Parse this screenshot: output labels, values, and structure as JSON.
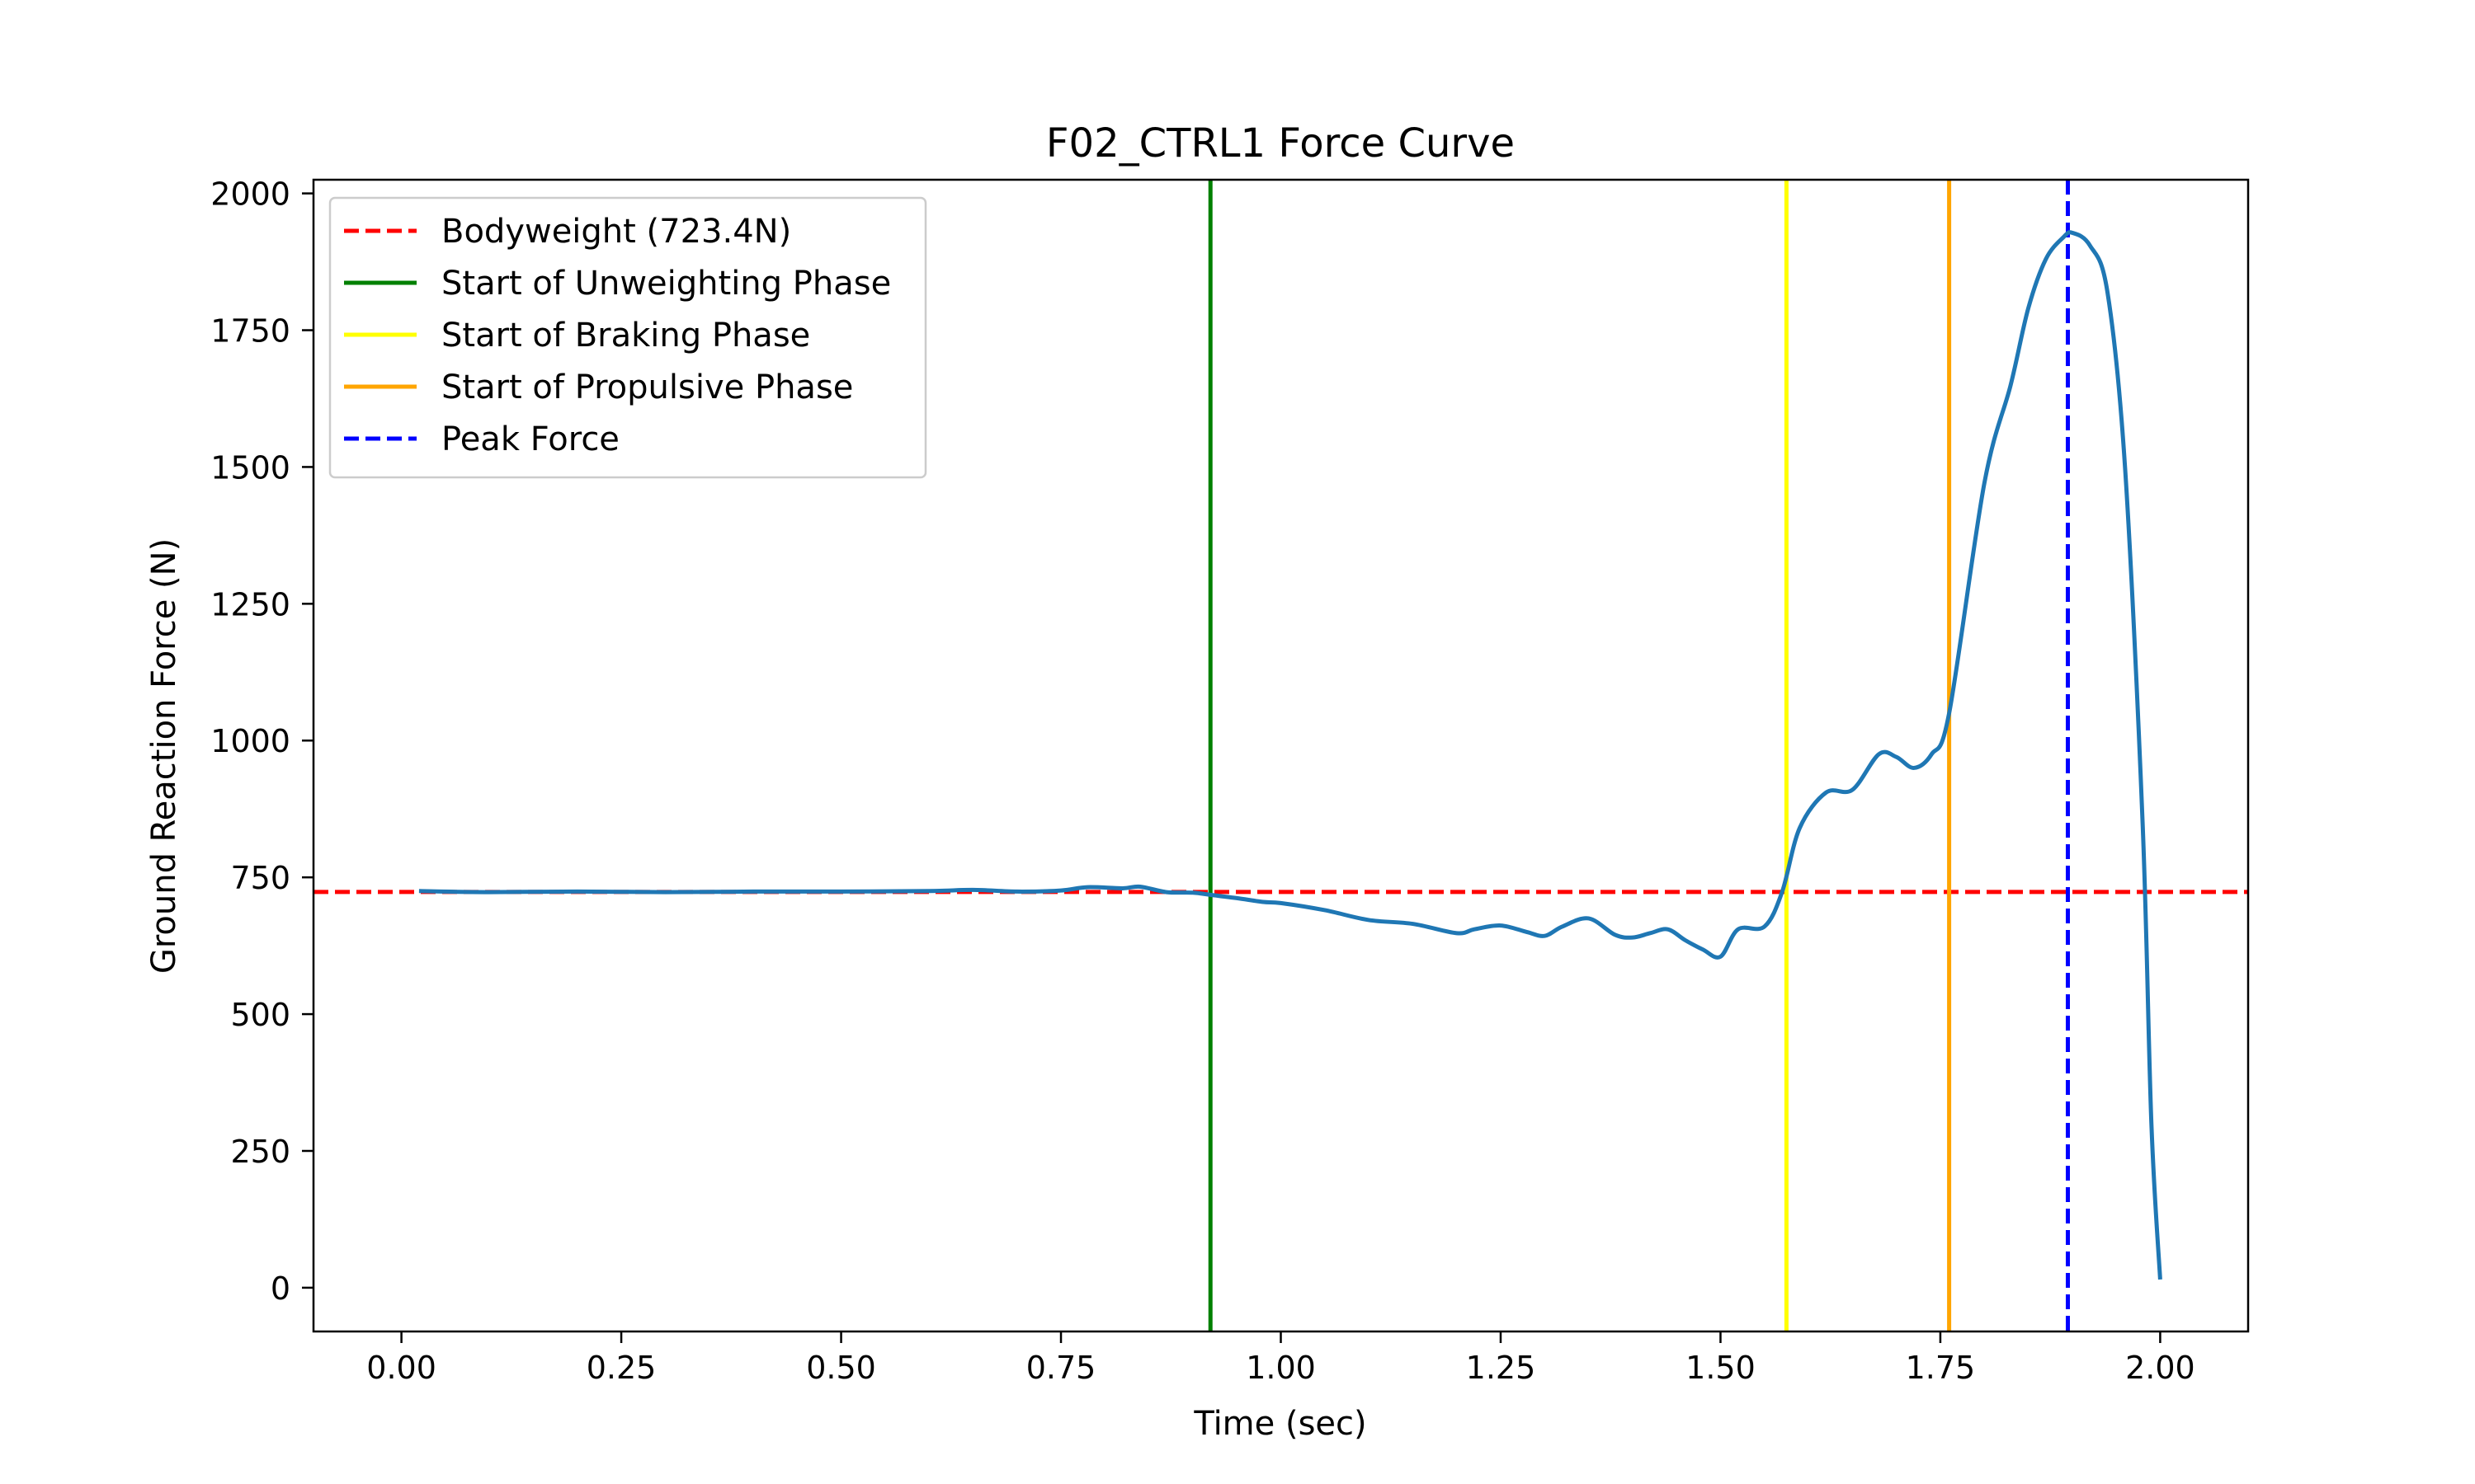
{
  "chart_data": {
    "type": "line",
    "title": "F02_CTRL1 Force Curve",
    "xlabel": "Time (sec)",
    "ylabel": "Ground Reaction Force (N)",
    "xlim": [
      -0.1,
      2.1
    ],
    "ylim": [
      -80,
      2025
    ],
    "xticks": [
      0.0,
      0.25,
      0.5,
      0.75,
      1.0,
      1.25,
      1.5,
      1.75,
      2.0
    ],
    "xtick_labels": [
      "0.00",
      "0.25",
      "0.50",
      "0.75",
      "1.00",
      "1.25",
      "1.50",
      "1.75",
      "2.00"
    ],
    "yticks": [
      0,
      250,
      500,
      750,
      1000,
      1250,
      1500,
      1750,
      2000
    ],
    "ytick_labels": [
      "0",
      "250",
      "500",
      "750",
      "1000",
      "1250",
      "1500",
      "1750",
      "2000"
    ],
    "grid": false,
    "legend_position": "top-left",
    "series": [
      {
        "color": "#1f77b4",
        "x": [
          0.02,
          0.1,
          0.2,
          0.3,
          0.4,
          0.5,
          0.6,
          0.65,
          0.7,
          0.75,
          0.78,
          0.82,
          0.84,
          0.87,
          0.9,
          0.92,
          0.95,
          0.98,
          1.0,
          1.05,
          1.1,
          1.15,
          1.2,
          1.22,
          1.25,
          1.28,
          1.3,
          1.32,
          1.35,
          1.38,
          1.4,
          1.42,
          1.44,
          1.46,
          1.48,
          1.5,
          1.52,
          1.55,
          1.57,
          1.59,
          1.62,
          1.65,
          1.68,
          1.7,
          1.72,
          1.74,
          1.76,
          1.8,
          1.83,
          1.85,
          1.87,
          1.89,
          1.9,
          1.92,
          1.94,
          1.96,
          1.98,
          1.99,
          2.0
        ],
        "y": [
          725,
          723,
          724,
          723,
          724,
          724,
          725,
          727,
          724,
          726,
          732,
          730,
          733,
          723,
          722,
          718,
          712,
          705,
          703,
          690,
          672,
          665,
          648,
          655,
          662,
          650,
          643,
          660,
          675,
          645,
          640,
          648,
          655,
          635,
          618,
          605,
          655,
          660,
          723,
          840,
          905,
          910,
          975,
          970,
          950,
          975,
          1050,
          1470,
          1650,
          1790,
          1880,
          1920,
          1928,
          1905,
          1820,
          1500,
          850,
          300,
          15
        ]
      }
    ],
    "reference_lines": [
      {
        "name": "Bodyweight (723.4N)",
        "orientation": "horizontal",
        "value": 723.4,
        "color": "#ff0000",
        "style": "dashed"
      },
      {
        "name": "Start of Unweighting Phase",
        "orientation": "vertical",
        "value": 0.92,
        "color": "#008000",
        "style": "solid"
      },
      {
        "name": "Start of Braking Phase",
        "orientation": "vertical",
        "value": 1.575,
        "color": "#ffff00",
        "style": "solid"
      },
      {
        "name": "Start of Propulsive Phase",
        "orientation": "vertical",
        "value": 1.76,
        "color": "#ffa500",
        "style": "solid"
      },
      {
        "name": "Peak Force",
        "orientation": "vertical",
        "value": 1.895,
        "color": "#0000ff",
        "style": "dashed"
      }
    ]
  }
}
